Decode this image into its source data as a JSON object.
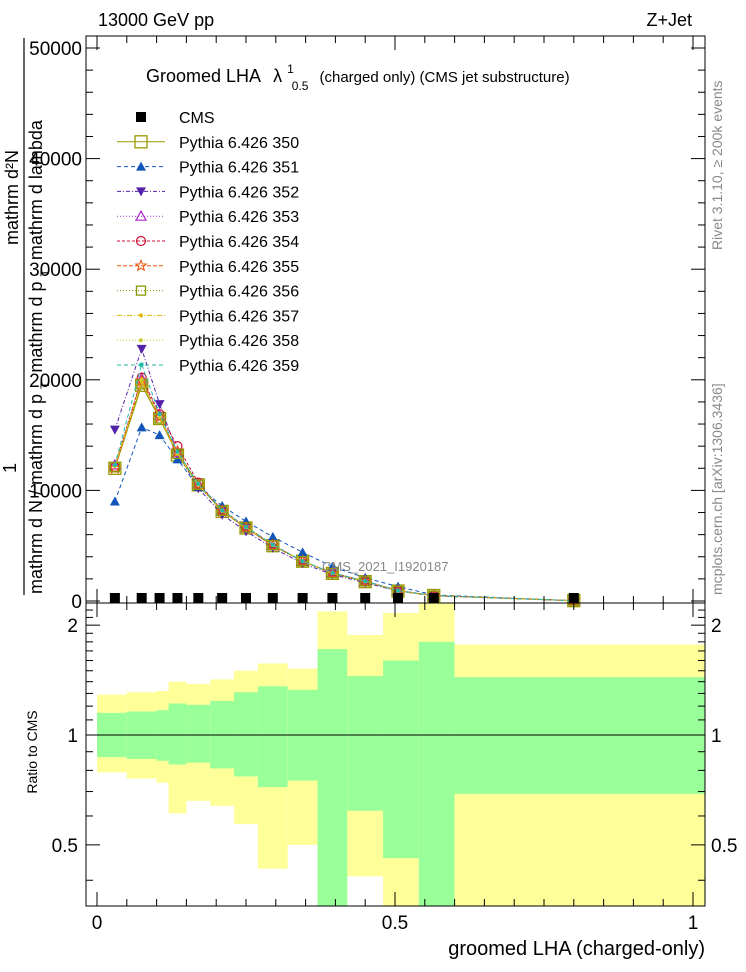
{
  "header": {
    "left": "13000 GeV pp",
    "right": "Z+Jet"
  },
  "side_labels": {
    "rivet": "Rivet 3.1.10, ≥ 200k events",
    "mcplots": "mcplots.cern.ch [arXiv:1306.3436]"
  },
  "watermark": "CMS_2021_I1920187",
  "colors": {
    "yellow_band": "#ffff99",
    "green_band": "#99ff99"
  },
  "chart_data": [
    {
      "type": "line",
      "panel": "main",
      "title_prefix": "Groomed LHA",
      "title_symbol": "λ",
      "title_sup": "1",
      "title_sub": "0.5",
      "title_suffix": "(charged only) (CMS jet substructure)",
      "ylabel": {
        "part1": "mathrm d N / mathrm d p",
        "part1_sub": "T",
        "part2": "mathrm d p",
        "part2_sub": "T",
        "part3": "mathrm d lambda",
        "numer": "mathrm d²N",
        "frac_one": "1"
      },
      "xlim": [
        0,
        1
      ],
      "ylim": [
        0,
        50000
      ],
      "y_ticks": [
        0,
        10000,
        20000,
        30000,
        40000,
        50000
      ],
      "y_tick_labels": [
        "0",
        "10000",
        "20000",
        "30000",
        "40000",
        "50000"
      ],
      "x": [
        0.03,
        0.075,
        0.105,
        0.135,
        0.17,
        0.21,
        0.25,
        0.295,
        0.345,
        0.395,
        0.45,
        0.505,
        0.565,
        0.8
      ],
      "series": [
        {
          "name": "CMS",
          "color": "#000000",
          "marker": "square-filled",
          "dash": "",
          "values": [
            0,
            0,
            0,
            0,
            0,
            0,
            0,
            0,
            0,
            0,
            0,
            0,
            0,
            0
          ]
        },
        {
          "name": "Pythia 6.426 350",
          "color": "#999900",
          "marker": "square-open-big",
          "dash": "",
          "values": [
            12000,
            19500,
            16500,
            13200,
            10500,
            8100,
            6600,
            5000,
            3600,
            2500,
            1750,
            900,
            500,
            30
          ]
        },
        {
          "name": "Pythia 6.426 351",
          "color": "#1155bb",
          "marker": "triangle-up-filled",
          "dash": "4,3",
          "values": [
            9000,
            15700,
            15000,
            12800,
            10300,
            8600,
            7200,
            5800,
            4400,
            3100,
            2100,
            1300,
            550,
            30
          ]
        },
        {
          "name": "Pythia 6.426 352",
          "color": "#5522aa",
          "marker": "triangle-down-filled",
          "dash": "4,2,1,2",
          "values": [
            15500,
            22800,
            17800,
            13400,
            10200,
            7800,
            6300,
            4800,
            3400,
            2400,
            1650,
            900,
            450,
            25
          ]
        },
        {
          "name": "Pythia 6.426 353",
          "color": "#aa22cc",
          "marker": "triangle-up-open",
          "dash": "1,2",
          "values": [
            12300,
            20100,
            16800,
            13400,
            10600,
            8200,
            6600,
            5000,
            3600,
            2550,
            1800,
            950,
            500,
            30
          ]
        },
        {
          "name": "Pythia 6.426 354",
          "color": "#cc1133",
          "marker": "circle-open",
          "dash": "3,2",
          "values": [
            12100,
            20200,
            16900,
            14000,
            10700,
            8200,
            6700,
            5100,
            3600,
            2550,
            1800,
            950,
            500,
            30
          ]
        },
        {
          "name": "Pythia 6.426 355",
          "color": "#ee5511",
          "marker": "star-open",
          "dash": "4,2",
          "values": [
            12000,
            19900,
            16600,
            13500,
            10500,
            8100,
            6600,
            5000,
            3600,
            2500,
            1780,
            930,
            490,
            30
          ]
        },
        {
          "name": "Pythia 6.426 356",
          "color": "#889900",
          "marker": "square-open",
          "dash": "1,2",
          "values": [
            12100,
            19600,
            16500,
            13300,
            10500,
            8150,
            6650,
            5050,
            3600,
            2520,
            1770,
            920,
            490,
            30
          ]
        },
        {
          "name": "Pythia 6.426 357",
          "color": "#ddbb00",
          "marker": "dot",
          "dash": "5,2,1,2",
          "values": [
            12200,
            19800,
            16600,
            13300,
            10500,
            8150,
            6650,
            5050,
            3600,
            2520,
            1770,
            920,
            490,
            30
          ]
        },
        {
          "name": "Pythia 6.426 358",
          "color": "#cccc33",
          "marker": "dot",
          "dash": "1,2",
          "values": [
            12200,
            20000,
            16700,
            13400,
            10500,
            8150,
            6650,
            5050,
            3600,
            2520,
            1770,
            920,
            490,
            30
          ]
        },
        {
          "name": "Pythia 6.426 359",
          "color": "#22bbaa",
          "marker": "dot",
          "dash": "4,3",
          "values": [
            12300,
            21400,
            16900,
            13500,
            10600,
            8200,
            6700,
            5100,
            3600,
            2550,
            1800,
            940,
            500,
            30
          ]
        }
      ]
    },
    {
      "type": "area",
      "panel": "ratio",
      "ylabel": "Ratio to CMS",
      "xlabel": "groomed LHA (charged-only)",
      "xlim": [
        0,
        1
      ],
      "ylim": [
        0.34,
        2.3
      ],
      "y_tick_labels": [
        {
          "value": 0.5,
          "label": "0.5"
        },
        {
          "value": 1,
          "label": "1"
        },
        {
          "value": 2,
          "label": "2"
        }
      ],
      "x_tick_labels": [
        {
          "value": 0,
          "label": "0"
        },
        {
          "value": 0.5,
          "label": "0.5"
        },
        {
          "value": 1,
          "label": "1"
        }
      ],
      "bins": [
        0,
        0.05,
        0.1,
        0.12,
        0.15,
        0.19,
        0.23,
        0.27,
        0.32,
        0.37,
        0.42,
        0.48,
        0.54,
        0.6,
        1
      ],
      "yellow_low": [
        0.79,
        0.76,
        0.74,
        0.61,
        0.66,
        0.64,
        0.57,
        0.43,
        0.5,
        0.34,
        0.41,
        0.34,
        0.34,
        0.34
      ],
      "yellow_high": [
        1.29,
        1.31,
        1.32,
        1.4,
        1.38,
        1.42,
        1.5,
        1.57,
        1.52,
        2.18,
        1.88,
        2.16,
        2.3,
        1.77
      ],
      "green_low": [
        0.87,
        0.86,
        0.85,
        0.83,
        0.84,
        0.81,
        0.77,
        0.72,
        0.75,
        0.34,
        0.62,
        0.46,
        0.34,
        0.69
      ],
      "green_high": [
        1.15,
        1.16,
        1.17,
        1.22,
        1.21,
        1.24,
        1.31,
        1.36,
        1.33,
        1.72,
        1.45,
        1.6,
        1.8,
        1.44
      ]
    }
  ]
}
